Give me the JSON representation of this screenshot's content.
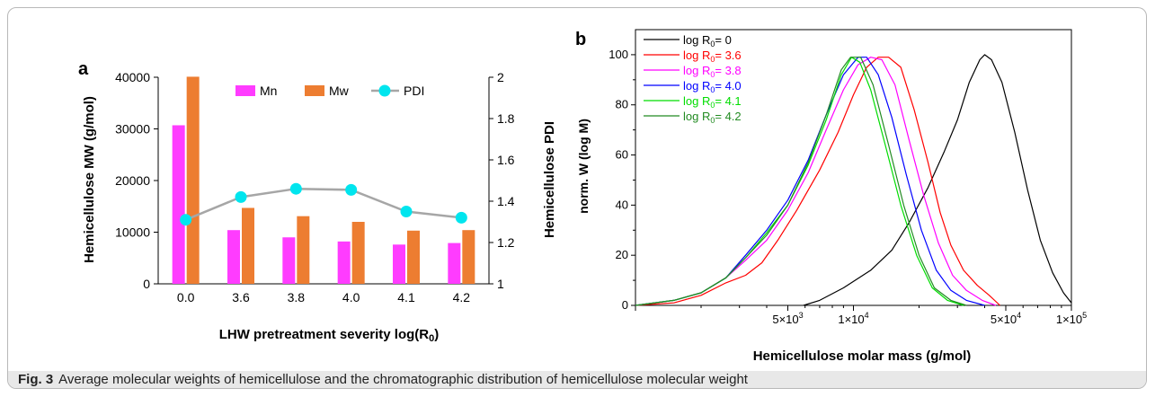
{
  "caption": {
    "label": "Fig. 3",
    "text": "Average molecular weights of hemicellulose and the chromatographic distribution of hemicellulose molecular weight"
  },
  "chart_data": [
    {
      "panel": "a",
      "type": "bar",
      "categories": [
        "0.0",
        "3.6",
        "3.8",
        "4.0",
        "4.1",
        "4.2"
      ],
      "series": [
        {
          "name": "Mn",
          "type": "bar",
          "axis": "left",
          "color": "#ff3cff",
          "values": [
            30700,
            10400,
            9000,
            8200,
            7600,
            7900
          ]
        },
        {
          "name": "Mw",
          "type": "bar",
          "axis": "left",
          "color": "#ed7d31",
          "values": [
            40100,
            14700,
            13100,
            12000,
            10300,
            10400
          ]
        },
        {
          "name": "PDI",
          "type": "line",
          "axis": "right",
          "color": "#00e5ee",
          "line_color": "#a6a6a6",
          "values": [
            1.31,
            1.42,
            1.46,
            1.455,
            1.35,
            1.32
          ]
        }
      ],
      "xlabel": "LHW pretreatment severity log(R₀)",
      "ylabel": "Hemicellulose MW (g/mol)",
      "y2label": "Hemicellulose PDI",
      "ylim": [
        0,
        40000
      ],
      "y2lim": [
        1,
        2
      ],
      "yticks": [
        "0",
        "10000",
        "20000",
        "30000",
        "40000"
      ],
      "y2ticks": [
        "1",
        "1.2",
        "1.4",
        "1.6",
        "1.8",
        "2"
      ],
      "legend": "top"
    },
    {
      "panel": "b",
      "type": "line",
      "xscale": "log",
      "xlim": [
        1000,
        100000
      ],
      "ylim": [
        0,
        110
      ],
      "xlabel": "Hemicellulose molar mass (g/mol)",
      "ylabel": "norm. W (log M)",
      "yticks": [
        "0",
        "20",
        "40",
        "60",
        "80",
        "100"
      ],
      "xticks": [
        {
          "value": 5000,
          "mant": "5×10",
          "exp": "3"
        },
        {
          "value": 10000,
          "mant": "1×10",
          "exp": "4"
        },
        {
          "value": 50000,
          "mant": "5×10",
          "exp": "4"
        },
        {
          "value": 100000,
          "mant": "1×10",
          "exp": "5"
        }
      ],
      "legend": "top-left",
      "series": [
        {
          "name": "log R₀= 0",
          "pre": "log R",
          "sub": "0",
          "post": "= 0",
          "color": "#000000",
          "points": [
            [
              5900,
              0
            ],
            [
              7000,
              2
            ],
            [
              9000,
              7
            ],
            [
              12000,
              14
            ],
            [
              15000,
              22
            ],
            [
              18000,
              33
            ],
            [
              22000,
              47
            ],
            [
              26000,
              61
            ],
            [
              30000,
              74
            ],
            [
              34000,
              89
            ],
            [
              38000,
              98
            ],
            [
              40000,
              100
            ],
            [
              43000,
              98
            ],
            [
              48000,
              89
            ],
            [
              55000,
              69
            ],
            [
              63000,
              46
            ],
            [
              72000,
              26
            ],
            [
              82000,
              13
            ],
            [
              92000,
              5
            ],
            [
              100000,
              1
            ]
          ]
        },
        {
          "name": "log R₀= 3.6",
          "pre": "log R",
          "sub": "0",
          "post": "= 3.6",
          "color": "#ff0000",
          "points": [
            [
              1000,
              0
            ],
            [
              1500,
              1
            ],
            [
              2000,
              4
            ],
            [
              2600,
              9
            ],
            [
              3200,
              12
            ],
            [
              3800,
              17
            ],
            [
              4500,
              26
            ],
            [
              5500,
              38
            ],
            [
              7000,
              54
            ],
            [
              8500,
              69
            ],
            [
              10000,
              84
            ],
            [
              11500,
              95
            ],
            [
              13000,
              99
            ],
            [
              14500,
              99
            ],
            [
              16500,
              95
            ],
            [
              19000,
              78
            ],
            [
              22000,
              57
            ],
            [
              25000,
              37
            ],
            [
              28000,
              24
            ],
            [
              32000,
              14
            ],
            [
              37000,
              8
            ],
            [
              42000,
              4
            ],
            [
              47000,
              0
            ]
          ]
        },
        {
          "name": "log R₀= 3.8",
          "pre": "log R",
          "sub": "0",
          "post": "= 3.8",
          "color": "#ff00ff",
          "points": [
            [
              1000,
              0
            ],
            [
              1500,
              2
            ],
            [
              2000,
              5
            ],
            [
              2600,
              11
            ],
            [
              3200,
              18
            ],
            [
              4000,
              26
            ],
            [
              5000,
              38
            ],
            [
              6200,
              53
            ],
            [
              7500,
              70
            ],
            [
              9000,
              86
            ],
            [
              10500,
              96
            ],
            [
              12000,
              99
            ],
            [
              13500,
              98
            ],
            [
              15500,
              88
            ],
            [
              18000,
              66
            ],
            [
              21000,
              44
            ],
            [
              24500,
              25
            ],
            [
              28500,
              12
            ],
            [
              33000,
              6
            ],
            [
              39000,
              2
            ],
            [
              45000,
              0
            ]
          ]
        },
        {
          "name": "log R₀= 4.0",
          "pre": "log R",
          "sub": "0",
          "post": "= 4.0",
          "color": "#0000ff",
          "points": [
            [
              1000,
              0
            ],
            [
              1500,
              2
            ],
            [
              2000,
              5
            ],
            [
              2600,
              11
            ],
            [
              3200,
              20
            ],
            [
              4000,
              30
            ],
            [
              5000,
              42
            ],
            [
              6200,
              58
            ],
            [
              7500,
              76
            ],
            [
              9000,
              92
            ],
            [
              10500,
              99
            ],
            [
              11500,
              99
            ],
            [
              13000,
              92
            ],
            [
              15000,
              75
            ],
            [
              17500,
              52
            ],
            [
              20500,
              30
            ],
            [
              24000,
              14
            ],
            [
              28000,
              6
            ],
            [
              33000,
              2
            ],
            [
              40000,
              0
            ]
          ]
        },
        {
          "name": "log R₀= 4.1",
          "pre": "log R",
          "sub": "0",
          "post": "= 4.1",
          "color": "#00dd00",
          "points": [
            [
              1000,
              0
            ],
            [
              1500,
              2
            ],
            [
              2000,
              5
            ],
            [
              2600,
              11
            ],
            [
              3200,
              19
            ],
            [
              4000,
              29
            ],
            [
              5000,
              40
            ],
            [
              6200,
              56
            ],
            [
              7500,
              74
            ],
            [
              8800,
              92
            ],
            [
              9800,
              99
            ],
            [
              10700,
              97
            ],
            [
              12000,
              86
            ],
            [
              14000,
              64
            ],
            [
              16500,
              40
            ],
            [
              19500,
              20
            ],
            [
              23000,
              7
            ],
            [
              27000,
              2
            ],
            [
              32000,
              0
            ]
          ]
        },
        {
          "name": "log R₀= 4.2",
          "pre": "log R",
          "sub": "0",
          "post": "= 4.2",
          "color": "#228b22",
          "points": [
            [
              1000,
              0
            ],
            [
              1500,
              2
            ],
            [
              2000,
              5
            ],
            [
              2600,
              11
            ],
            [
              3200,
              19
            ],
            [
              4000,
              28
            ],
            [
              5000,
              40
            ],
            [
              6200,
              57
            ],
            [
              7500,
              76
            ],
            [
              8800,
              94
            ],
            [
              9700,
              99
            ],
            [
              10800,
              99
            ],
            [
              12300,
              88
            ],
            [
              14500,
              64
            ],
            [
              17000,
              40
            ],
            [
              20000,
              20
            ],
            [
              23500,
              7
            ],
            [
              28000,
              2
            ],
            [
              33000,
              0
            ]
          ]
        }
      ]
    }
  ]
}
